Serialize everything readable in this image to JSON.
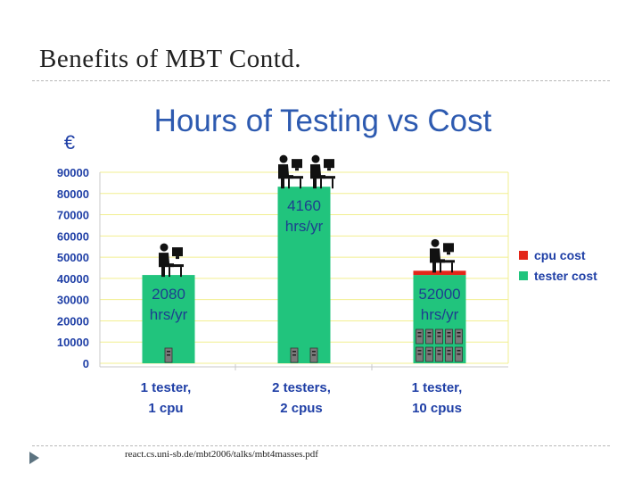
{
  "slide": {
    "title": "Benefits of MBT Contd.",
    "source": "react.cs.uni-sb.de/mbt2006/talks/mbt4masses.pdf"
  },
  "colors": {
    "tester": "#21c47d",
    "cpu": "#e32619",
    "chart_title": "#2d5ab0",
    "axis_text": "#1f3fa6",
    "grid": "#f2ef90",
    "bar_label": "#1d3f8f"
  },
  "icons": [
    "person-at-computer-icon",
    "server-tower-icon"
  ],
  "chart_data": {
    "type": "bar",
    "stacked": true,
    "title": "Hours of Testing vs Cost",
    "ylabel": "€",
    "xlabel": "",
    "ylim": [
      0,
      90000
    ],
    "yticks": [
      0,
      10000,
      20000,
      30000,
      40000,
      50000,
      60000,
      70000,
      80000,
      90000
    ],
    "grid": true,
    "legend_position": "right",
    "categories": [
      [
        "1 tester,",
        "1 cpu"
      ],
      [
        "2 testers,",
        "2 cpus"
      ],
      [
        "1 tester,",
        "10 cpus"
      ]
    ],
    "bar_labels": [
      [
        "2080",
        "hrs/yr"
      ],
      [
        "4160",
        "hrs/yr"
      ],
      [
        "52000",
        "hrs/yr"
      ]
    ],
    "series": [
      {
        "name": "tester cost",
        "values": [
          41600,
          83200,
          41600
        ]
      },
      {
        "name": "cpu cost",
        "values": [
          0,
          0,
          2000
        ]
      }
    ],
    "testers_per_bar": [
      1,
      2,
      1
    ],
    "cpus_per_bar": [
      1,
      2,
      10
    ]
  }
}
